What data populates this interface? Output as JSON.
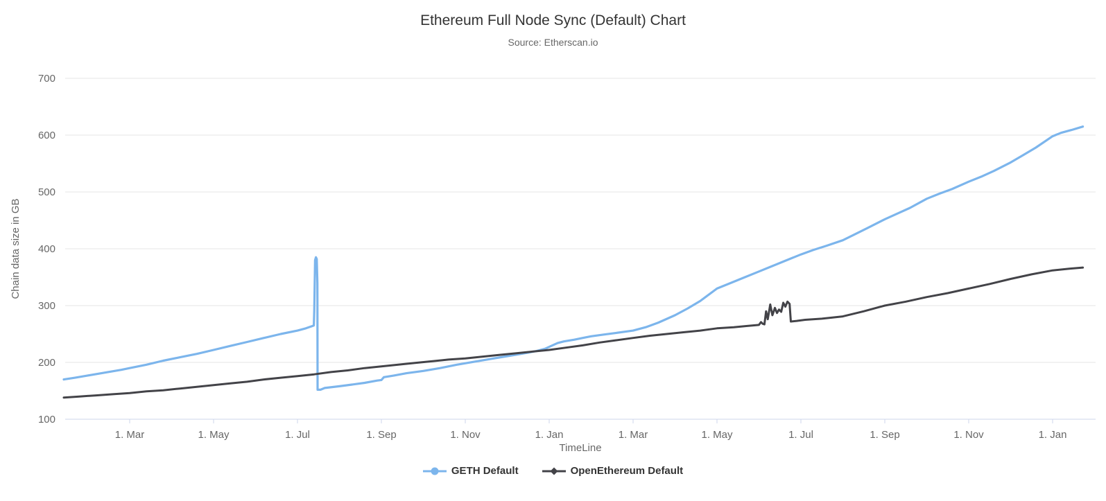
{
  "chart_data": {
    "type": "line",
    "title": "Ethereum Full Node Sync (Default) Chart",
    "subtitle": "Source: Etherscan.io",
    "xlabel": "TimeLine",
    "ylabel": "Chain data size in GB",
    "x_unit": "months since 1 Jan 2019",
    "xlim": [
      0,
      25.05
    ],
    "ylim": [
      100,
      700
    ],
    "y_ticks": [
      100,
      200,
      300,
      400,
      500,
      600,
      700
    ],
    "x_ticks": [
      {
        "m": 2,
        "label": "1. Mar"
      },
      {
        "m": 4,
        "label": "1. May"
      },
      {
        "m": 6,
        "label": "1. Jul"
      },
      {
        "m": 8,
        "label": "1. Sep"
      },
      {
        "m": 10,
        "label": "1. Nov"
      },
      {
        "m": 12,
        "label": "1. Jan"
      },
      {
        "m": 14,
        "label": "1. Mar"
      },
      {
        "m": 16,
        "label": "1. May"
      },
      {
        "m": 18,
        "label": "1. Jul"
      },
      {
        "m": 20,
        "label": "1. Sep"
      },
      {
        "m": 22,
        "label": "1. Nov"
      },
      {
        "m": 24,
        "label": "1. Jan"
      }
    ],
    "grid": "horizontal-only",
    "legend_position": "bottom-center",
    "style": {
      "grid_color": "#e6e6e6",
      "axis_line_color": "#ccd6eb",
      "axis_label_color": "#666666",
      "axis_title_color": "#666666",
      "title_color": "#333333",
      "legend_text_color": "#333333",
      "background": "#ffffff"
    },
    "series": [
      {
        "name": "GETH Default",
        "color": "#7cb5ec",
        "marker": "circle",
        "line_width": 3.2,
        "points": [
          [
            0.43,
            170
          ],
          [
            0.7,
            173
          ],
          [
            1.0,
            177
          ],
          [
            1.4,
            182
          ],
          [
            1.8,
            187
          ],
          [
            2.0,
            190
          ],
          [
            2.4,
            196
          ],
          [
            2.8,
            203
          ],
          [
            3.2,
            209
          ],
          [
            3.6,
            215
          ],
          [
            4.0,
            222
          ],
          [
            4.4,
            229
          ],
          [
            4.8,
            236
          ],
          [
            5.2,
            243
          ],
          [
            5.6,
            250
          ],
          [
            6.0,
            256
          ],
          [
            6.2,
            260
          ],
          [
            6.39,
            265
          ],
          [
            6.4,
            290
          ],
          [
            6.42,
            380
          ],
          [
            6.44,
            385
          ],
          [
            6.46,
            382
          ],
          [
            6.475,
            340
          ],
          [
            6.48,
            152
          ],
          [
            6.55,
            152
          ],
          [
            6.65,
            155
          ],
          [
            7.0,
            158
          ],
          [
            7.3,
            161
          ],
          [
            7.6,
            164
          ],
          [
            7.9,
            168
          ],
          [
            8.0,
            169
          ],
          [
            8.06,
            174
          ],
          [
            8.3,
            177
          ],
          [
            8.6,
            181
          ],
          [
            9.0,
            185
          ],
          [
            9.4,
            190
          ],
          [
            9.8,
            196
          ],
          [
            10.2,
            201
          ],
          [
            10.6,
            206
          ],
          [
            11.0,
            211
          ],
          [
            11.4,
            216
          ],
          [
            11.7,
            220
          ],
          [
            11.9,
            224
          ],
          [
            12.05,
            229
          ],
          [
            12.2,
            234
          ],
          [
            12.35,
            237
          ],
          [
            12.6,
            240
          ],
          [
            12.8,
            243
          ],
          [
            13.0,
            246
          ],
          [
            13.3,
            249
          ],
          [
            13.6,
            252
          ],
          [
            14.0,
            256
          ],
          [
            14.3,
            262
          ],
          [
            14.6,
            270
          ],
          [
            15.0,
            283
          ],
          [
            15.3,
            295
          ],
          [
            15.6,
            308
          ],
          [
            16.0,
            330
          ],
          [
            16.3,
            339
          ],
          [
            16.6,
            348
          ],
          [
            17.0,
            360
          ],
          [
            17.3,
            369
          ],
          [
            17.6,
            378
          ],
          [
            18.0,
            390
          ],
          [
            18.3,
            398
          ],
          [
            18.6,
            405
          ],
          [
            19.0,
            415
          ],
          [
            19.3,
            426
          ],
          [
            19.6,
            437
          ],
          [
            20.0,
            452
          ],
          [
            20.3,
            462
          ],
          [
            20.6,
            472
          ],
          [
            21.0,
            488
          ],
          [
            21.3,
            497
          ],
          [
            21.6,
            505
          ],
          [
            22.0,
            518
          ],
          [
            22.3,
            527
          ],
          [
            22.6,
            537
          ],
          [
            23.0,
            552
          ],
          [
            23.3,
            565
          ],
          [
            23.6,
            578
          ],
          [
            24.0,
            598
          ],
          [
            24.2,
            604
          ],
          [
            24.45,
            609
          ],
          [
            24.72,
            615
          ]
        ]
      },
      {
        "name": "OpenEthereum Default",
        "color": "#434348",
        "marker": "diamond",
        "line_width": 3,
        "points": [
          [
            0.43,
            138
          ],
          [
            0.8,
            140
          ],
          [
            1.2,
            142
          ],
          [
            1.6,
            144
          ],
          [
            2.0,
            146
          ],
          [
            2.4,
            149
          ],
          [
            2.8,
            151
          ],
          [
            3.2,
            154
          ],
          [
            3.6,
            157
          ],
          [
            4.0,
            160
          ],
          [
            4.4,
            163
          ],
          [
            4.8,
            166
          ],
          [
            5.2,
            170
          ],
          [
            5.6,
            173
          ],
          [
            6.0,
            176
          ],
          [
            6.4,
            179
          ],
          [
            6.8,
            183
          ],
          [
            7.2,
            186
          ],
          [
            7.6,
            190
          ],
          [
            8.0,
            193
          ],
          [
            8.4,
            196
          ],
          [
            8.8,
            199
          ],
          [
            9.2,
            202
          ],
          [
            9.6,
            205
          ],
          [
            10.0,
            207
          ],
          [
            10.4,
            210
          ],
          [
            10.8,
            213
          ],
          [
            11.2,
            216
          ],
          [
            11.6,
            219
          ],
          [
            12.0,
            222
          ],
          [
            12.4,
            226
          ],
          [
            12.8,
            230
          ],
          [
            13.2,
            235
          ],
          [
            13.6,
            239
          ],
          [
            14.0,
            243
          ],
          [
            14.4,
            247
          ],
          [
            14.8,
            250
          ],
          [
            15.2,
            253
          ],
          [
            15.6,
            256
          ],
          [
            16.0,
            260
          ],
          [
            16.4,
            262
          ],
          [
            16.7,
            264
          ],
          [
            17.0,
            266
          ],
          [
            17.05,
            271
          ],
          [
            17.09,
            268
          ],
          [
            17.13,
            267
          ],
          [
            17.17,
            290
          ],
          [
            17.21,
            276
          ],
          [
            17.27,
            302
          ],
          [
            17.32,
            283
          ],
          [
            17.38,
            296
          ],
          [
            17.43,
            287
          ],
          [
            17.48,
            293
          ],
          [
            17.53,
            289
          ],
          [
            17.58,
            305
          ],
          [
            17.63,
            298
          ],
          [
            17.68,
            307
          ],
          [
            17.73,
            303
          ],
          [
            17.76,
            272
          ],
          [
            17.9,
            273
          ],
          [
            18.1,
            275
          ],
          [
            18.5,
            277
          ],
          [
            19.0,
            281
          ],
          [
            19.5,
            290
          ],
          [
            20.0,
            300
          ],
          [
            20.5,
            307
          ],
          [
            21.0,
            315
          ],
          [
            21.5,
            322
          ],
          [
            22.0,
            330
          ],
          [
            22.5,
            338
          ],
          [
            23.0,
            347
          ],
          [
            23.5,
            355
          ],
          [
            24.0,
            362
          ],
          [
            24.4,
            365
          ],
          [
            24.72,
            367
          ]
        ]
      }
    ]
  }
}
